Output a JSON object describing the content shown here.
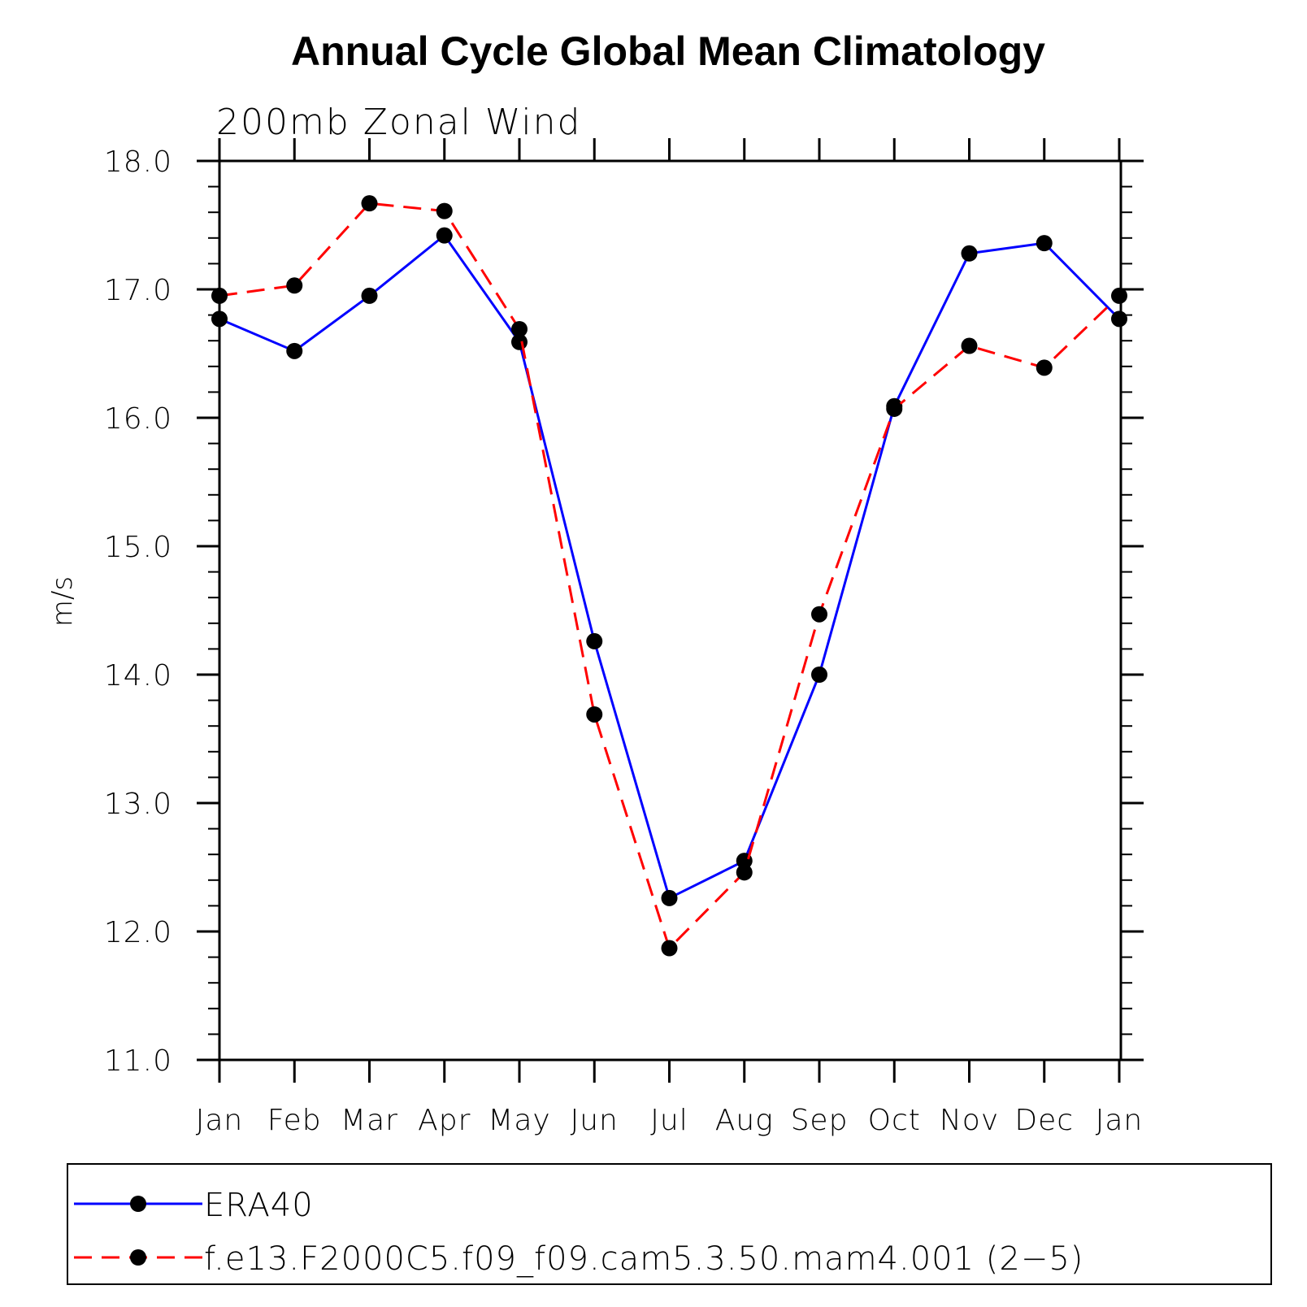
{
  "chart_data": {
    "type": "line",
    "title": "Annual Cycle Global Mean Climatology",
    "subtitle": "200mb Zonal Wind",
    "xlabel": "",
    "ylabel": "m/s",
    "ylim": [
      11.0,
      18.0
    ],
    "yticks": [
      "11.0",
      "12.0",
      "13.0",
      "14.0",
      "15.0",
      "16.0",
      "17.0",
      "18.0"
    ],
    "categories": [
      "Jan",
      "Feb",
      "Mar",
      "Apr",
      "May",
      "Jun",
      "Jul",
      "Aug",
      "Sep",
      "Oct",
      "Nov",
      "Dec",
      "Jan"
    ],
    "series": [
      {
        "name": "ERA40",
        "color": "#0000ff",
        "dash": "solid",
        "values": [
          16.77,
          16.52,
          16.95,
          17.42,
          16.59,
          14.26,
          12.26,
          12.55,
          14.0,
          16.09,
          17.28,
          17.36,
          16.77
        ]
      },
      {
        "name": "f.e13.F2000C5.f09_f09.cam5.3.50.mam4.001 (2−5)",
        "color": "#ff0000",
        "dash": "dashed",
        "values": [
          16.95,
          17.03,
          17.67,
          17.61,
          16.69,
          13.69,
          11.87,
          12.46,
          14.47,
          16.07,
          16.56,
          16.39,
          16.95
        ]
      }
    ],
    "legend_position": "bottom"
  }
}
